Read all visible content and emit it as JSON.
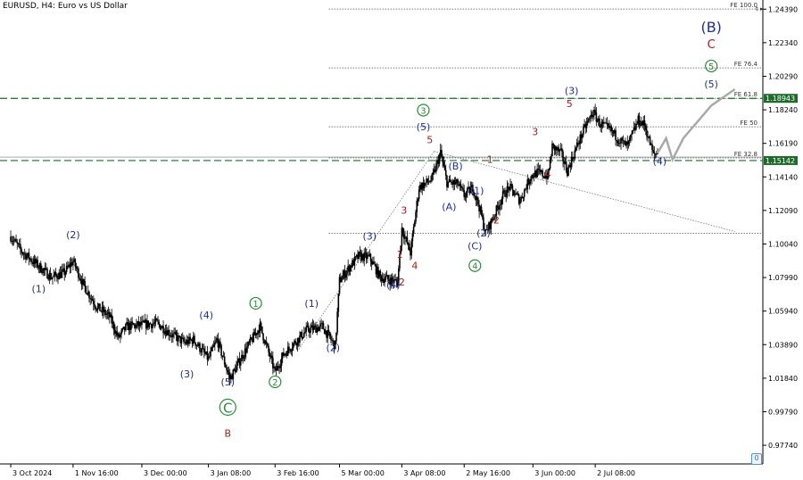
{
  "symbol_title": "EURUSD, H4:  Euro vs US Dollar",
  "colors": {
    "candle": "#000000",
    "wave_blue": "#1f2f8f",
    "wave_green": "#2e8b3a",
    "wave_red": "#a01d1d",
    "fib_line": "#555555",
    "level_green": "#1d6b2a",
    "projection": "#a9a9a9"
  },
  "chart_data": {
    "type": "candlestick",
    "title": "EURUSD, H4:  Euro vs US Dollar",
    "ylim": [
      0.966,
      1.2495
    ],
    "price_ticks": [
      "1.24390",
      "1.22340",
      "1.20290",
      "1.18240",
      "1.16190",
      "1.14140",
      "1.12090",
      "1.10040",
      "1.07990",
      "1.05940",
      "1.03890",
      "1.01840",
      "0.99790",
      "0.97740"
    ],
    "date_ticks": [
      "3 Oct 2024",
      "1 Nov 16:00",
      "3 Dec 00:00",
      "3 Jan 08:00",
      "3 Feb 16:00",
      "5 Mar 00:00",
      "3 Apr 08:00",
      "2 May 16:00",
      "3 Jun 00:00",
      "2 Jul 08:00"
    ],
    "price_path": [
      [
        "3 Oct 2024",
        1.105
      ],
      [
        "8 Oct 2024",
        1.096
      ],
      [
        "15 Oct 2024",
        1.088
      ],
      [
        "22 Oct 2024",
        1.08
      ],
      [
        "28 Oct 2024",
        1.083
      ],
      [
        "1 Nov 2024",
        1.09
      ],
      [
        "6 Nov 2024",
        1.075
      ],
      [
        "12 Nov 2024",
        1.062
      ],
      [
        "18 Nov 2024",
        1.056
      ],
      [
        "22 Nov 2024",
        1.043
      ],
      [
        "26 Nov 2024",
        1.05
      ],
      [
        "3 Dec 2024",
        1.051
      ],
      [
        "10 Dec 2024",
        1.052
      ],
      [
        "17 Dec 2024",
        1.045
      ],
      [
        "23 Dec 2024",
        1.04
      ],
      [
        "27 Dec 2024",
        1.042
      ],
      [
        "3 Jan 2025",
        1.03
      ],
      [
        "7 Jan 2025",
        1.042
      ],
      [
        "13 Jan 2025",
        1.018
      ],
      [
        "20 Jan 2025",
        1.035
      ],
      [
        "27 Jan 2025",
        1.05
      ],
      [
        "30 Jan 2025",
        1.038
      ],
      [
        "3 Feb 2025",
        1.022
      ],
      [
        "7 Feb 2025",
        1.033
      ],
      [
        "12 Feb 2025",
        1.04
      ],
      [
        "18 Feb 2025",
        1.048
      ],
      [
        "25 Feb 2025",
        1.05
      ],
      [
        "3 Mar 2025",
        1.038
      ],
      [
        "5 Mar 2025",
        1.078
      ],
      [
        "10 Mar 2025",
        1.087
      ],
      [
        "14 Mar 2025",
        1.093
      ],
      [
        "19 Mar 2025",
        1.092
      ],
      [
        "24 Mar 2025",
        1.08
      ],
      [
        "27 Mar 2025",
        1.079
      ],
      [
        "1 Apr 2025",
        1.077
      ],
      [
        "3 Apr 2025",
        1.11
      ],
      [
        "7 Apr 2025",
        1.095
      ],
      [
        "11 Apr 2025",
        1.135
      ],
      [
        "17 Apr 2025",
        1.14
      ],
      [
        "21 Apr 2025",
        1.156
      ],
      [
        "24 Apr 2025",
        1.138
      ],
      [
        "29 Apr 2025",
        1.137
      ],
      [
        "2 May 2025",
        1.13
      ],
      [
        "6 May 2025",
        1.135
      ],
      [
        "9 May 2025",
        1.123
      ],
      [
        "12 May 2025",
        1.107
      ],
      [
        "16 May 2025",
        1.118
      ],
      [
        "20 May 2025",
        1.13
      ],
      [
        "23 May 2025",
        1.135
      ],
      [
        "28 May 2025",
        1.127
      ],
      [
        "2 Jun 2025",
        1.142
      ],
      [
        "5 Jun 2025",
        1.144
      ],
      [
        "10 Jun 2025",
        1.142
      ],
      [
        "12 Jun 2025",
        1.16
      ],
      [
        "16 Jun 2025",
        1.156
      ],
      [
        "19 Jun 2025",
        1.145
      ],
      [
        "24 Jun 2025",
        1.162
      ],
      [
        "27 Jun 2025",
        1.171
      ],
      [
        "1 Jul 2025",
        1.181
      ],
      [
        "4 Jul 2025",
        1.174
      ],
      [
        "9 Jul 2025",
        1.17
      ],
      [
        "14 Jul 2025",
        1.163
      ],
      [
        "17 Jul 2025",
        1.16
      ],
      [
        "22 Jul 2025",
        1.176
      ],
      [
        "25 Jul 2025",
        1.173
      ],
      [
        "29 Jul 2025",
        1.155
      ],
      [
        "31 Jul 2025",
        1.156
      ]
    ],
    "projection_path": [
      [
        "31 Jul 2025",
        1.156
      ],
      [
        "4 Aug 2025",
        1.165
      ],
      [
        "7 Aug 2025",
        1.152
      ],
      [
        "12 Aug 2025",
        1.165
      ],
      [
        "25 Aug 2025",
        1.185
      ],
      [
        "5 Sep 2025",
        1.195
      ]
    ],
    "fib_levels": [
      {
        "label": "FE 100.0",
        "price": 1.244
      },
      {
        "label": "FE 76.4",
        "price": 1.208
      },
      {
        "label": "FE 61.8",
        "price": 1.1894
      },
      {
        "label": "FE 50",
        "price": 1.172
      },
      {
        "label": "FE 32.8",
        "price": 1.153
      }
    ],
    "support_line": 1.107,
    "channel_line": [
      [
        "18 Apr 2025",
        1.157
      ],
      [
        "5 Sep 2025",
        1.108
      ]
    ],
    "impulse_line": [
      [
        "14 Feb 2025",
        1.036
      ],
      [
        "18 Apr 2025",
        1.157
      ]
    ],
    "price_labels": [
      {
        "text": "1.18943",
        "price": 1.1894
      },
      {
        "text": "1.15142",
        "price": 1.1514
      }
    ],
    "wave_labels": [
      {
        "text": "(2)",
        "date": "1 Nov 2024",
        "price": 1.104,
        "color": "blue"
      },
      {
        "text": "(1)",
        "date": "16 Oct 2024",
        "price": 1.071,
        "color": "blue"
      },
      {
        "text": "(4)",
        "date": "2 Jan 2025",
        "price": 1.055,
        "color": "blue"
      },
      {
        "text": "(3)",
        "date": "24 Dec 2024",
        "price": 1.019,
        "color": "blue"
      },
      {
        "text": "(5)",
        "date": "12 Jan 2025",
        "price": 1.014,
        "color": "blue"
      },
      {
        "text": "C",
        "date": "12 Jan 2025",
        "price": 0.9985,
        "color": "green",
        "circled": true
      },
      {
        "text": "B",
        "date": "12 Jan 2025",
        "price": 0.9825,
        "color": "red"
      },
      {
        "text": "1",
        "date": "25 Jan 2025",
        "price": 1.062,
        "color": "green",
        "circled": true
      },
      {
        "text": "2",
        "date": "3 Feb 2025",
        "price": 1.014,
        "color": "green",
        "circled": true
      },
      {
        "text": "(1)",
        "date": "20 Feb 2025",
        "price": 1.062,
        "color": "blue"
      },
      {
        "text": "(2)",
        "date": "2 Mar 2025",
        "price": 1.035,
        "color": "blue"
      },
      {
        "text": "(3)",
        "date": "19 Mar 2025",
        "price": 1.103,
        "color": "blue"
      },
      {
        "text": "(4)",
        "date": "30 Mar 2025",
        "price": 1.0735,
        "color": "blue"
      },
      {
        "text": "1",
        "date": "2 Apr 2025",
        "price": 1.092,
        "color": "red"
      },
      {
        "text": "2",
        "date": "3 Apr 2025",
        "price": 1.075,
        "color": "red"
      },
      {
        "text": "3",
        "date": "4 Apr 2025",
        "price": 1.119,
        "color": "red"
      },
      {
        "text": "4",
        "date": "9 Apr 2025",
        "price": 1.085,
        "color": "red"
      },
      {
        "text": "3",
        "date": "13 Apr 2025",
        "price": 1.18,
        "color": "green",
        "circled": true
      },
      {
        "text": "(5)",
        "date": "13 Apr 2025",
        "price": 1.17,
        "color": "blue"
      },
      {
        "text": "5",
        "date": "16 Apr 2025",
        "price": 1.162,
        "color": "red"
      },
      {
        "text": "(B)",
        "date": "28 Apr 2025",
        "price": 1.146,
        "color": "blue"
      },
      {
        "text": "(A)",
        "date": "25 Apr 2025",
        "price": 1.121,
        "color": "blue"
      },
      {
        "text": "(1)",
        "date": "8 May 2025",
        "price": 1.131,
        "color": "blue"
      },
      {
        "text": "(2)",
        "date": "11 May 2025",
        "price": 1.105,
        "color": "blue"
      },
      {
        "text": "(C)",
        "date": "7 May 2025",
        "price": 1.097,
        "color": "blue"
      },
      {
        "text": "4",
        "date": "7 May 2025",
        "price": 1.085,
        "color": "green",
        "circled": true
      },
      {
        "text": "1",
        "date": "14 May 2025",
        "price": 1.15,
        "color": "red"
      },
      {
        "text": "2",
        "date": "17 May 2025",
        "price": 1.113,
        "color": "red"
      },
      {
        "text": "3",
        "date": "4 Jun 2025",
        "price": 1.167,
        "color": "red"
      },
      {
        "text": "4",
        "date": "10 Jun 2025",
        "price": 1.141,
        "color": "red"
      },
      {
        "text": "(3)",
        "date": "21 Jun 2025",
        "price": 1.192,
        "color": "blue"
      },
      {
        "text": "5",
        "date": "20 Jun 2025",
        "price": 1.184,
        "color": "red"
      },
      {
        "text": "(4)",
        "date": "1 Aug 2025",
        "price": 1.149,
        "color": "blue"
      },
      {
        "text": "(B)",
        "date": "25 Aug 2025",
        "price": 1.23,
        "color": "blue",
        "large": true
      },
      {
        "text": "C",
        "date": "25 Aug 2025",
        "price": 1.22,
        "color": "red"
      },
      {
        "text": "5",
        "date": "25 Aug 2025",
        "price": 1.207,
        "color": "green",
        "circled": true
      },
      {
        "text": "(5)",
        "date": "25 Aug 2025",
        "price": 1.196,
        "color": "blue"
      }
    ]
  }
}
